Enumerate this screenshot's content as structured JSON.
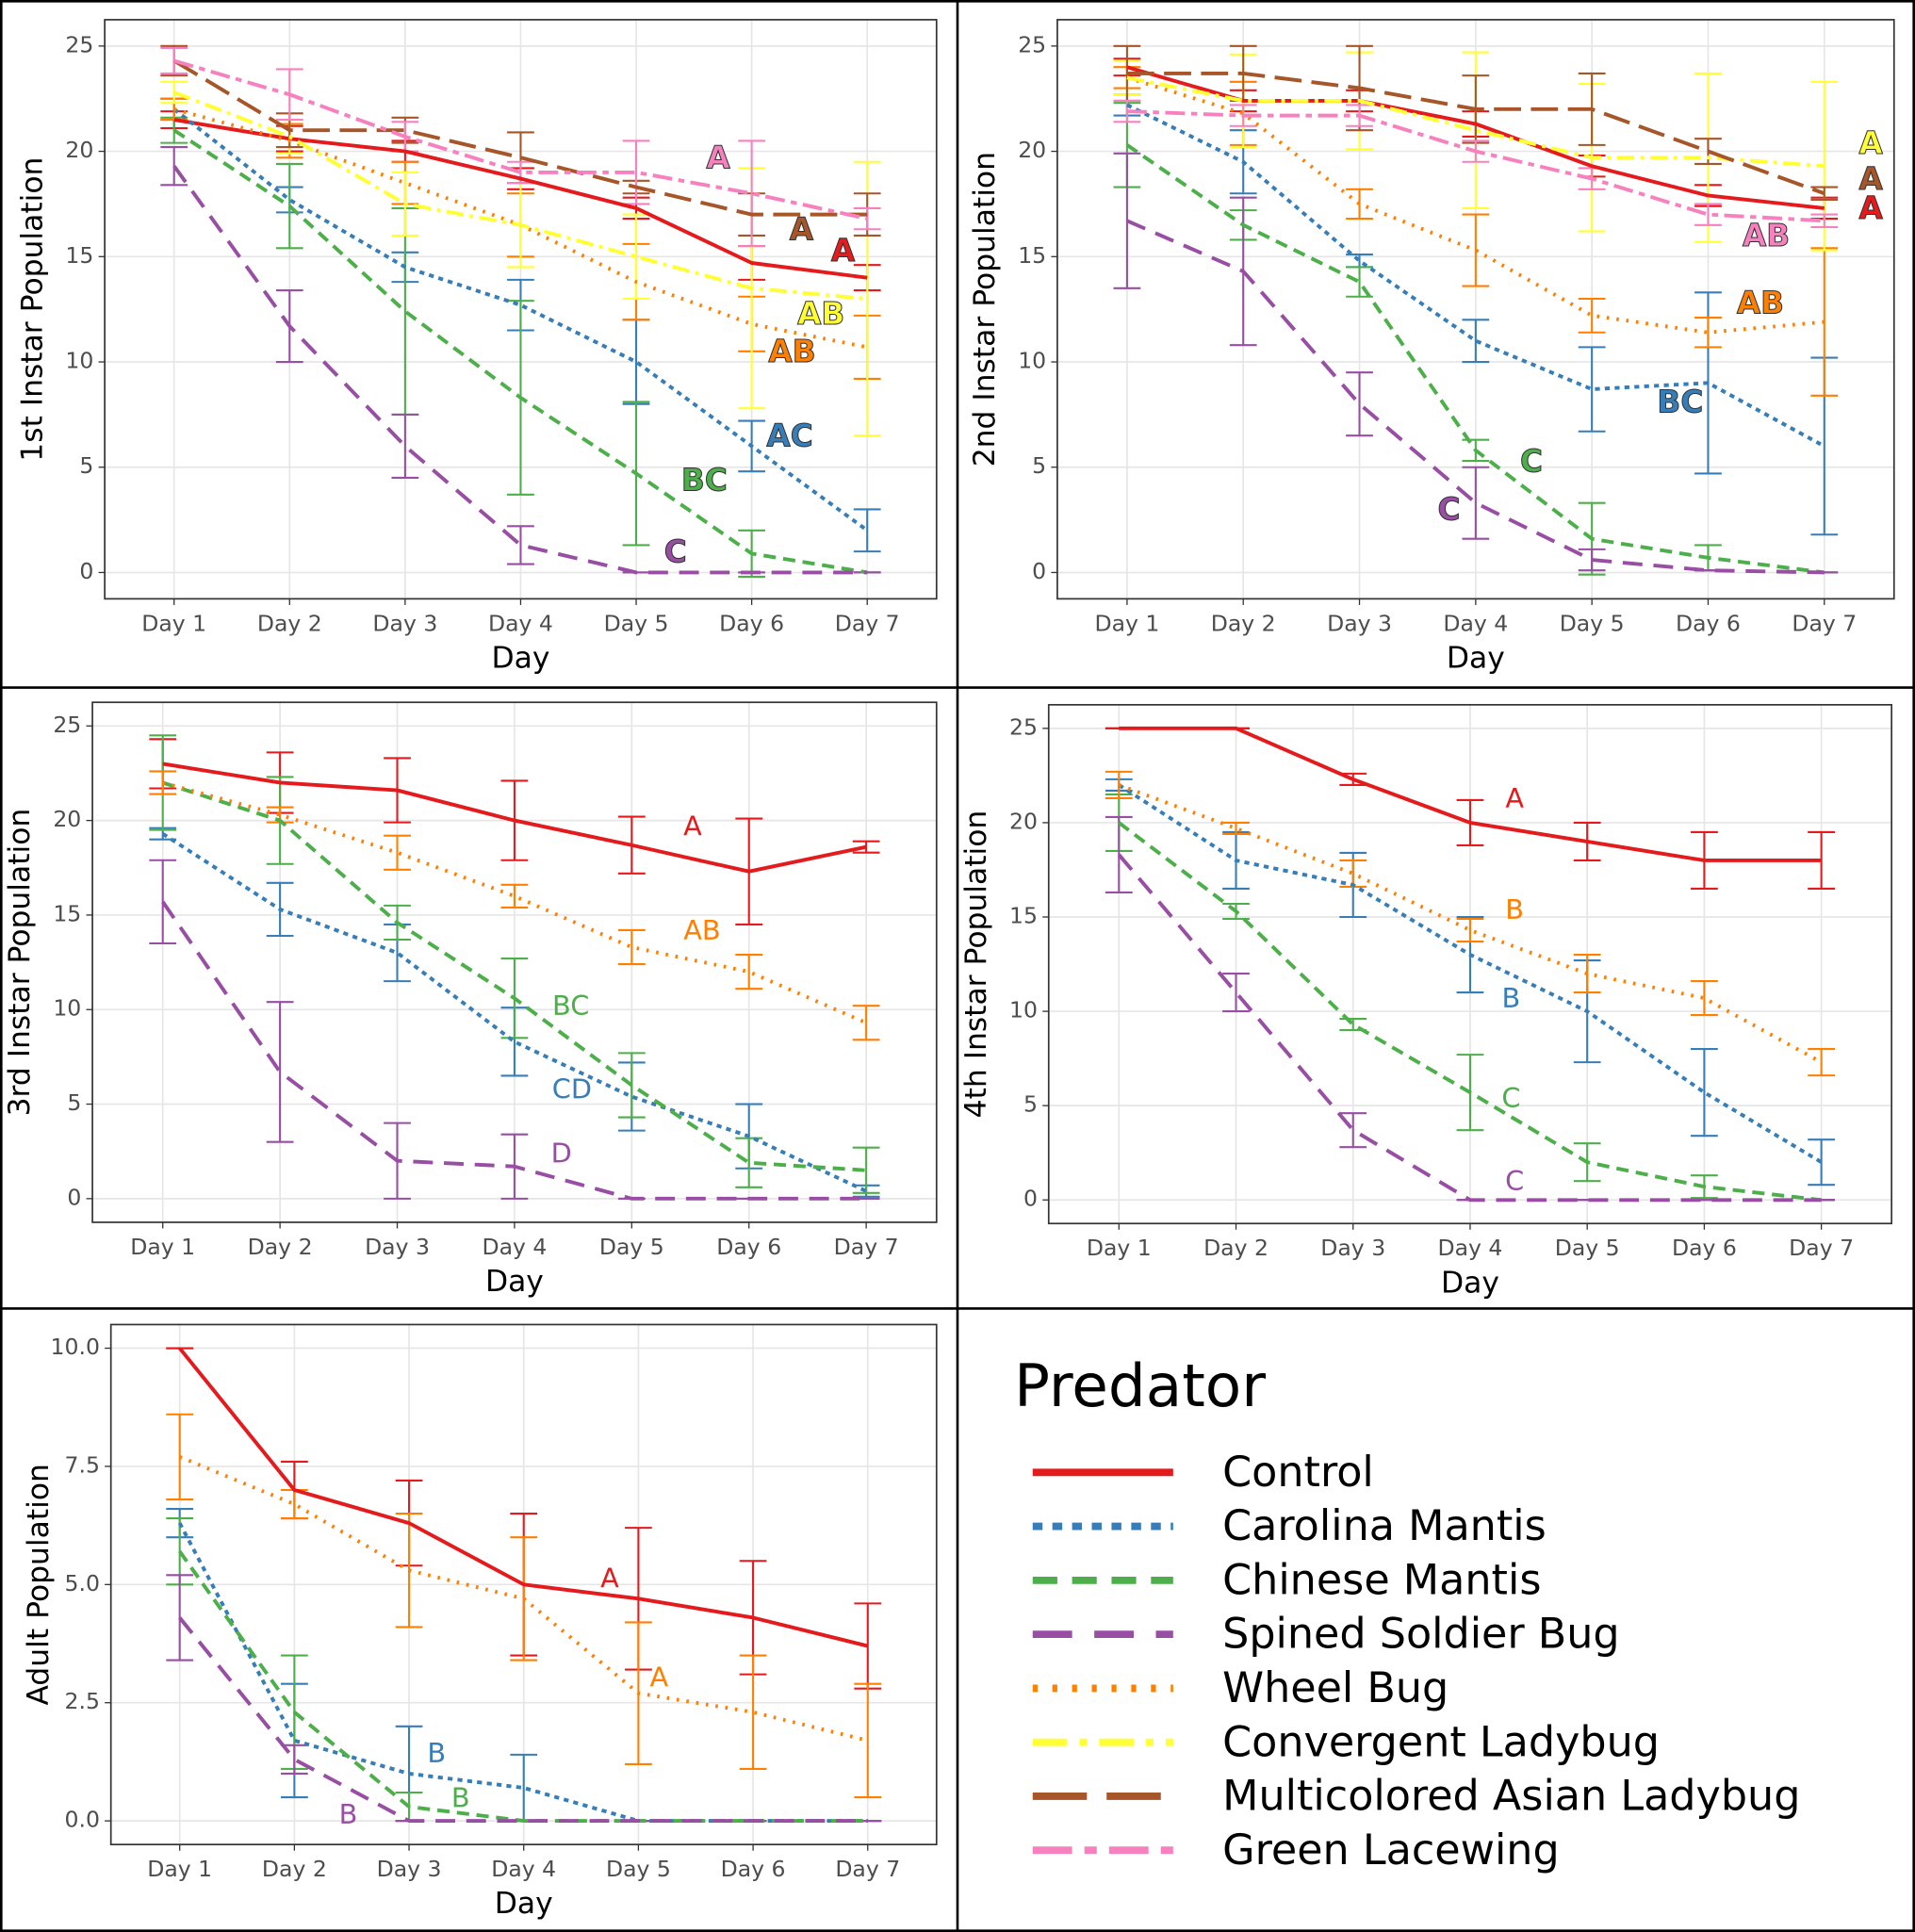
{
  "legend": {
    "title": "Predator"
  },
  "chart_data": [
    {
      "type": "line",
      "x_label": "Day",
      "y_label": "1st Instar Population",
      "grid": true,
      "categories": [
        "Day 1",
        "Day 2",
        "Day 3",
        "Day 4",
        "Day 5",
        "Day 6",
        "Day 7"
      ],
      "ylim": [
        -1.25,
        26.25
      ],
      "yticks": [
        0,
        5,
        10,
        15,
        20,
        25
      ],
      "series": [
        {
          "name": "Control",
          "color": "#e41a1c",
          "linestyle": "solid",
          "values": [
            21.5,
            20.6,
            20,
            18.7,
            17.3,
            14.7,
            14
          ],
          "errors": [
            0.4,
            0.6,
            0.5,
            0.5,
            0.5,
            0.8,
            0.6
          ]
        },
        {
          "name": "Carolina Mantis",
          "color": "#377eb8",
          "linestyle": "dotted",
          "values": [
            22,
            17.7,
            14.5,
            12.7,
            10,
            6,
            2
          ],
          "errors": [
            0.5,
            0.6,
            0.7,
            1.2,
            2,
            1.2,
            1
          ]
        },
        {
          "name": "Chinese Mantis",
          "color": "#4daf4a",
          "linestyle": "dashed",
          "values": [
            21,
            17.4,
            12.4,
            8.3,
            4.7,
            0.9,
            0
          ],
          "errors": [
            0.6,
            2,
            4.9,
            4.6,
            3.4,
            1.1,
            0
          ]
        },
        {
          "name": "Spined Soldier Bug",
          "color": "#984ea3",
          "linestyle": "longdashed",
          "values": [
            19.3,
            11.7,
            6,
            1.3,
            0,
            0,
            0
          ],
          "errors": [
            0.9,
            1.7,
            1.5,
            0.9,
            0,
            0,
            0
          ]
        },
        {
          "name": "Wheel Bug",
          "color": "#ff7f00",
          "linestyle": "finedotted",
          "values": [
            22,
            20.5,
            18.5,
            16.5,
            13.8,
            11.8,
            10.7
          ],
          "errors": [
            0.5,
            0.8,
            1,
            1.5,
            1.8,
            1.3,
            1.5
          ]
        },
        {
          "name": "Convergent Ladybug",
          "color": "#ffff33",
          "linestyle": "dashdot",
          "values": [
            22.8,
            20.7,
            17.5,
            16.5,
            15,
            13.5,
            13
          ],
          "errors": [
            0.5,
            0.8,
            1.5,
            2,
            2,
            5.7,
            6.5
          ]
        },
        {
          "name": "Multicolored Asian Ladybug",
          "color": "#a65628",
          "linestyle": "verylongdash",
          "values": [
            24.3,
            21,
            21,
            19.7,
            18.3,
            17,
            17
          ],
          "errors": [
            0.7,
            0.8,
            0.6,
            1.2,
            0.3,
            1,
            1
          ]
        },
        {
          "name": "Green Lacewing",
          "color": "#f781bf",
          "linestyle": "twodash",
          "values": [
            24.3,
            22.7,
            20.7,
            19,
            19,
            18,
            16.8
          ],
          "errors": [
            0.6,
            1.2,
            0.7,
            0.5,
            1.5,
            2.5,
            0.5
          ]
        }
      ],
      "annotations": [
        {
          "text": "A",
          "x": 5.71,
          "y": 19.6,
          "color": "#f781bf"
        },
        {
          "text": "A",
          "x": 6.43,
          "y": 16.2,
          "color": "#a65628"
        },
        {
          "text": "A",
          "x": 6.79,
          "y": 15.2,
          "color": "#e41a1c"
        },
        {
          "text": "AB",
          "x": 6.6,
          "y": 12.2,
          "color": "#ffff33"
        },
        {
          "text": "AB",
          "x": 6.35,
          "y": 10.4,
          "color": "#ff7f00"
        },
        {
          "text": "AC",
          "x": 6.33,
          "y": 6.4,
          "color": "#377eb8"
        },
        {
          "text": "BC",
          "x": 5.59,
          "y": 4.3,
          "color": "#4daf4a"
        },
        {
          "text": "C",
          "x": 5.34,
          "y": 0.9,
          "color": "#984ea3"
        }
      ]
    },
    {
      "type": "line",
      "x_label": "Day",
      "y_label": "2nd Instar Population",
      "grid": true,
      "categories": [
        "Day 1",
        "Day 2",
        "Day 3",
        "Day 4",
        "Day 5",
        "Day 6",
        "Day 7"
      ],
      "ylim": [
        -1.25,
        26.25
      ],
      "yticks": [
        0,
        5,
        10,
        15,
        20,
        25
      ],
      "series": [
        {
          "name": "Control",
          "color": "#e41a1c",
          "linestyle": "solid",
          "values": [
            24,
            22.4,
            22.4,
            21.3,
            19.3,
            17.9,
            17.3
          ],
          "errors": [
            0.4,
            0.5,
            0.5,
            0.6,
            0.5,
            0.5,
            0.5
          ]
        },
        {
          "name": "Carolina Mantis",
          "color": "#377eb8",
          "linestyle": "dotted",
          "values": [
            22.2,
            19.5,
            14.8,
            11,
            8.7,
            9,
            6
          ],
          "errors": [
            0.5,
            1.5,
            0.3,
            1,
            2,
            4.3,
            4.2
          ]
        },
        {
          "name": "Chinese Mantis",
          "color": "#4daf4a",
          "linestyle": "dashed",
          "values": [
            20.3,
            16.5,
            13.8,
            5.8,
            1.6,
            0.7,
            0
          ],
          "errors": [
            2,
            0.7,
            0.7,
            0.5,
            1.7,
            0.6,
            0
          ]
        },
        {
          "name": "Spined Soldier Bug",
          "color": "#984ea3",
          "linestyle": "longdashed",
          "values": [
            16.7,
            14.3,
            8,
            3.3,
            0.6,
            0.1,
            0
          ],
          "errors": [
            3.2,
            3.5,
            1.5,
            1.7,
            0.5,
            0,
            0
          ]
        },
        {
          "name": "Wheel Bug",
          "color": "#ff7f00",
          "linestyle": "finedotted",
          "values": [
            23.5,
            21.8,
            17.5,
            15.3,
            12.2,
            11.4,
            11.9
          ],
          "errors": [
            0.5,
            1.5,
            0.7,
            1.7,
            0.8,
            0.7,
            3.5
          ]
        },
        {
          "name": "Convergent Ladybug",
          "color": "#ffff33",
          "linestyle": "dashdot",
          "values": [
            23.5,
            22.4,
            22.4,
            21,
            19.7,
            19.7,
            19.3
          ],
          "errors": [
            0.8,
            2.2,
            2.3,
            3.7,
            3.5,
            4,
            4
          ]
        },
        {
          "name": "Multicolored Asian Ladybug",
          "color": "#a65628",
          "linestyle": "verylongdash",
          "values": [
            23.7,
            23.7,
            23,
            22,
            22,
            20,
            18
          ],
          "errors": [
            1.3,
            1.3,
            2,
            1.6,
            1.7,
            0.6,
            0.3
          ]
        },
        {
          "name": "Green Lacewing",
          "color": "#f781bf",
          "linestyle": "twodash",
          "values": [
            21.9,
            21.7,
            21.7,
            20,
            18.7,
            17,
            16.7
          ],
          "errors": [
            0.5,
            0.5,
            0.5,
            0.5,
            0.5,
            0.5,
            0.3
          ]
        }
      ],
      "annotations": [
        {
          "text": "A",
          "x": 7.4,
          "y": 20.3,
          "color": "#ffff33"
        },
        {
          "text": "A",
          "x": 7.4,
          "y": 18.6,
          "color": "#a65628"
        },
        {
          "text": "A",
          "x": 7.4,
          "y": 17.2,
          "color": "#e41a1c"
        },
        {
          "text": "AB",
          "x": 6.5,
          "y": 15.9,
          "color": "#f781bf"
        },
        {
          "text": "AB",
          "x": 6.45,
          "y": 12.7,
          "color": "#ff7f00"
        },
        {
          "text": "BC",
          "x": 5.76,
          "y": 8,
          "color": "#377eb8"
        },
        {
          "text": "C",
          "x": 4.48,
          "y": 5.2,
          "color": "#4daf4a"
        },
        {
          "text": "C",
          "x": 3.77,
          "y": 2.9,
          "color": "#984ea3"
        }
      ]
    },
    {
      "type": "line",
      "x_label": "Day",
      "y_label": "3rd Instar Population",
      "grid": true,
      "categories": [
        "Day 1",
        "Day 2",
        "Day 3",
        "Day 4",
        "Day 5",
        "Day 6",
        "Day 7"
      ],
      "ylim": [
        -1.25,
        26.25
      ],
      "yticks": [
        0,
        5,
        10,
        15,
        20,
        25
      ],
      "series": [
        {
          "name": "Control",
          "color": "#e41a1c",
          "linestyle": "solid",
          "values": [
            23,
            22,
            21.6,
            20,
            18.7,
            17.3,
            18.6
          ],
          "errors": [
            1.3,
            1.6,
            1.7,
            2.1,
            1.5,
            2.8,
            0.3
          ]
        },
        {
          "name": "Carolina Mantis",
          "color": "#377eb8",
          "linestyle": "dotted",
          "values": [
            19.3,
            15.3,
            13,
            8.3,
            5.4,
            3.3,
            0.4
          ],
          "errors": [
            0.3,
            1.4,
            1.5,
            1.8,
            1.8,
            1.7,
            0.3
          ]
        },
        {
          "name": "Chinese Mantis",
          "color": "#4daf4a",
          "linestyle": "dashed",
          "values": [
            22,
            20,
            14.6,
            10.6,
            6,
            1.9,
            1.5
          ],
          "errors": [
            2.5,
            2.3,
            0.9,
            2.1,
            1.7,
            1.3,
            1.2
          ]
        },
        {
          "name": "Spined Soldier Bug",
          "color": "#984ea3",
          "linestyle": "longdashed",
          "values": [
            15.7,
            6.7,
            2,
            1.7,
            0,
            0,
            0
          ],
          "errors": [
            2.2,
            3.7,
            2,
            1.7,
            0,
            0,
            0
          ]
        },
        {
          "name": "Wheel Bug",
          "color": "#ff7f00",
          "linestyle": "finedotted",
          "values": [
            22,
            20.3,
            18.3,
            16,
            13.3,
            12,
            9.3
          ],
          "errors": [
            0.6,
            0.4,
            0.9,
            0.6,
            0.9,
            0.9,
            0.9
          ]
        }
      ],
      "annotations": [
        {
          "text": "A",
          "x": 5.52,
          "y": 19.6,
          "color": "#e41a1c"
        },
        {
          "text": "AB",
          "x": 5.6,
          "y": 14.1,
          "color": "#ff7f00"
        },
        {
          "text": "BC",
          "x": 4.48,
          "y": 10.1,
          "color": "#4daf4a"
        },
        {
          "text": "CD",
          "x": 4.49,
          "y": 5.7,
          "color": "#377eb8"
        },
        {
          "text": "D",
          "x": 4.4,
          "y": 2.3,
          "color": "#984ea3"
        }
      ]
    },
    {
      "type": "line",
      "x_label": "Day",
      "y_label": "4th Instar Population",
      "grid": true,
      "categories": [
        "Day 1",
        "Day 2",
        "Day 3",
        "Day 4",
        "Day 5",
        "Day 6",
        "Day 7"
      ],
      "ylim": [
        -1.25,
        26.25
      ],
      "yticks": [
        0,
        5,
        10,
        15,
        20,
        25
      ],
      "series": [
        {
          "name": "Control",
          "color": "#e41a1c",
          "linestyle": "solid",
          "values": [
            25,
            25,
            22.3,
            20,
            19,
            18,
            18
          ],
          "errors": [
            0,
            0,
            0.3,
            1.2,
            1,
            1.5,
            1.5
          ]
        },
        {
          "name": "Carolina Mantis",
          "color": "#377eb8",
          "linestyle": "dotted",
          "values": [
            22,
            18,
            16.7,
            13,
            10,
            5.7,
            2
          ],
          "errors": [
            0.3,
            1.5,
            1.7,
            2,
            2.7,
            2.3,
            1.2
          ]
        },
        {
          "name": "Chinese Mantis",
          "color": "#4daf4a",
          "linestyle": "dashed",
          "values": [
            20,
            15.3,
            9.3,
            5.7,
            2,
            0.7,
            0
          ],
          "errors": [
            1.5,
            0.4,
            0.3,
            2,
            1,
            0.6,
            0
          ]
        },
        {
          "name": "Spined Soldier Bug",
          "color": "#984ea3",
          "linestyle": "longdashed",
          "values": [
            18.3,
            11,
            3.7,
            0,
            0,
            0,
            0
          ],
          "errors": [
            2,
            1,
            0.9,
            0,
            0,
            0,
            0
          ]
        },
        {
          "name": "Wheel Bug",
          "color": "#ff7f00",
          "linestyle": "finedotted",
          "values": [
            22,
            19.7,
            17.3,
            14.3,
            12,
            10.7,
            7.3
          ],
          "errors": [
            0.7,
            0.3,
            0.7,
            0.6,
            1,
            0.9,
            0.7
          ]
        }
      ],
      "annotations": [
        {
          "text": "A",
          "x": 4.38,
          "y": 21.2,
          "color": "#e41a1c"
        },
        {
          "text": "B",
          "x": 4.38,
          "y": 15.3,
          "color": "#ff7f00"
        },
        {
          "text": "B",
          "x": 4.35,
          "y": 10.6,
          "color": "#377eb8"
        },
        {
          "text": "C",
          "x": 4.35,
          "y": 5.3,
          "color": "#4daf4a"
        },
        {
          "text": "C",
          "x": 4.38,
          "y": 0.9,
          "color": "#984ea3"
        }
      ]
    },
    {
      "type": "line",
      "x_label": "Day",
      "y_label": "Adult Population",
      "grid": true,
      "categories": [
        "Day 1",
        "Day 2",
        "Day 3",
        "Day 4",
        "Day 5",
        "Day 6",
        "Day 7"
      ],
      "ylim": [
        -0.5,
        10.5
      ],
      "yticks": [
        {
          "value": 0,
          "label": "0.0"
        },
        {
          "value": 2.5,
          "label": "2.5"
        },
        {
          "value": 5,
          "label": "5.0"
        },
        {
          "value": 7.5,
          "label": "7.5"
        },
        {
          "value": 10,
          "label": "10.0"
        }
      ],
      "series": [
        {
          "name": "Control",
          "color": "#e41a1c",
          "linestyle": "solid",
          "values": [
            10,
            7,
            6.3,
            5,
            4.7,
            4.3,
            3.7
          ],
          "errors": [
            0,
            0.6,
            0.9,
            1.5,
            1.5,
            1.2,
            0.9
          ]
        },
        {
          "name": "Carolina Mantis",
          "color": "#377eb8",
          "linestyle": "dotted",
          "values": [
            6.3,
            1.7,
            1,
            0.7,
            0,
            0,
            0
          ],
          "errors": [
            0.3,
            1.2,
            1,
            0.7,
            0,
            0,
            0
          ]
        },
        {
          "name": "Chinese Mantis",
          "color": "#4daf4a",
          "linestyle": "dashed",
          "values": [
            5.7,
            2.3,
            0.3,
            0,
            0,
            0,
            0
          ],
          "errors": [
            0.7,
            1.2,
            0.3,
            0,
            0,
            0,
            0
          ]
        },
        {
          "name": "Spined Soldier Bug",
          "color": "#984ea3",
          "linestyle": "longdashed",
          "values": [
            4.3,
            1.3,
            0,
            0,
            0,
            0,
            0
          ],
          "errors": [
            0.9,
            0.3,
            0,
            0,
            0,
            0,
            0
          ]
        },
        {
          "name": "Wheel Bug",
          "color": "#ff7f00",
          "linestyle": "finedotted",
          "values": [
            7.7,
            6.7,
            5.3,
            4.7,
            2.7,
            2.3,
            1.7
          ],
          "errors": [
            0.9,
            0.3,
            1.2,
            1.3,
            1.5,
            1.2,
            1.2
          ]
        }
      ],
      "annotations": [
        {
          "text": "A",
          "x": 4.75,
          "y": 5.1,
          "color": "#e41a1c"
        },
        {
          "text": "A",
          "x": 5.18,
          "y": 3,
          "color": "#ff7f00"
        },
        {
          "text": "B",
          "x": 3.24,
          "y": 1.4,
          "color": "#377eb8"
        },
        {
          "text": "B",
          "x": 3.45,
          "y": 0.45,
          "color": "#4daf4a"
        },
        {
          "text": "B",
          "x": 2.47,
          "y": 0.1,
          "color": "#984ea3"
        }
      ]
    }
  ]
}
